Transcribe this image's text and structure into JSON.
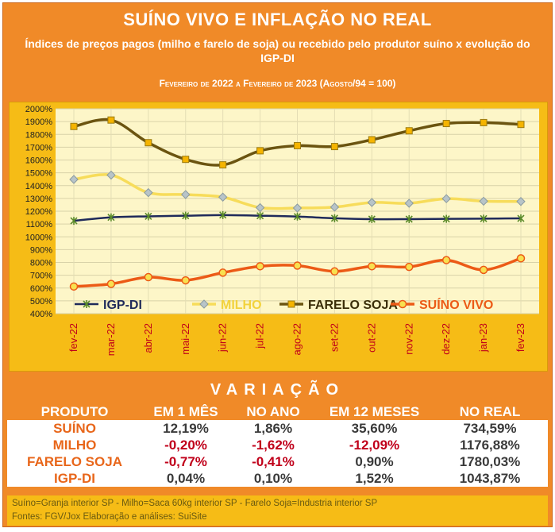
{
  "header": {
    "title": "SUÍNO VIVO E INFLAÇÃO NO REAL",
    "subtitle": "Índices de preços pagos (milho e farelo de soja) ou recebido pelo produtor suíno x evolução do IGP-DI",
    "period": "Fevereiro de 2022 a Fevereiro de 2023 (Agosto/94 = 100)"
  },
  "chart_data": {
    "type": "line",
    "categories": [
      "fev-22",
      "mar-22",
      "abr-22",
      "mai-22",
      "jun-22",
      "jul-22",
      "ago-22",
      "set-22",
      "out-22",
      "nov-22",
      "dez-22",
      "jan-23",
      "fev-23"
    ],
    "ylim": [
      400,
      2000
    ],
    "yticks": [
      "400%",
      "500%",
      "600%",
      "700%",
      "800%",
      "900%",
      "1000%",
      "1100%",
      "1200%",
      "1300%",
      "1400%",
      "1500%",
      "1600%",
      "1700%",
      "1800%",
      "1900%",
      "2000%"
    ],
    "grid": true,
    "legend_position": "bottom-inside",
    "series": [
      {
        "name": "IGP-DI",
        "color": "#1f2a5a",
        "marker": "star",
        "values": [
          1125,
          1152,
          1160,
          1165,
          1170,
          1165,
          1158,
          1145,
          1138,
          1138,
          1140,
          1142,
          1144
        ]
      },
      {
        "name": "MILHO",
        "color": "#f7dc5a",
        "marker": "diamond",
        "values": [
          1448,
          1482,
          1345,
          1330,
          1310,
          1228,
          1225,
          1232,
          1268,
          1262,
          1298,
          1278,
          1276
        ]
      },
      {
        "name": "FARELO SOJA",
        "color": "#6b5410",
        "marker": "square",
        "values": [
          1862,
          1912,
          1735,
          1605,
          1562,
          1672,
          1712,
          1705,
          1758,
          1828,
          1885,
          1892,
          1878
        ]
      },
      {
        "name": "SUÍNO VIVO",
        "color": "#ec5a16",
        "marker": "circle",
        "values": [
          612,
          632,
          685,
          660,
          720,
          770,
          775,
          730,
          770,
          765,
          818,
          742,
          832
        ]
      }
    ]
  },
  "variation": {
    "heading": "VARIAÇÃO",
    "columns": [
      "PRODUTO",
      "EM 1 MÊS",
      "NO ANO",
      "EM 12 MESES",
      "NO REAL"
    ],
    "rows": [
      {
        "product": "SUÍNO",
        "m1": "12,19%",
        "ano": "1,86%",
        "m12": "35,60%",
        "real": "734,59%"
      },
      {
        "product": "MILHO",
        "m1": "-0,20%",
        "ano": "-1,62%",
        "m12": "-12,09%",
        "real": "1176,88%"
      },
      {
        "product": "FARELO SOJA",
        "m1": "-0,77%",
        "ano": "-0,41%",
        "m12": "0,90%",
        "real": "1780,03%"
      },
      {
        "product": "IGP-DI",
        "m1": "0,04%",
        "ano": "0,10%",
        "m12": "1,52%",
        "real": "1043,87%"
      }
    ]
  },
  "notes": {
    "line1": "Suíno=Granja interior SP  -  Milho=Saca 60kg interior SP  -  Farelo Soja=Industria interior SP",
    "line2": "Fontes: FGV/Jox        Elaboração e análises: SuiSite"
  },
  "colors": {
    "frame": "#f08a28",
    "chart_bg": "#f6bc16",
    "plot_bg": "#fdf6c8",
    "negative": "#c0001a",
    "label": "#e8661a"
  }
}
